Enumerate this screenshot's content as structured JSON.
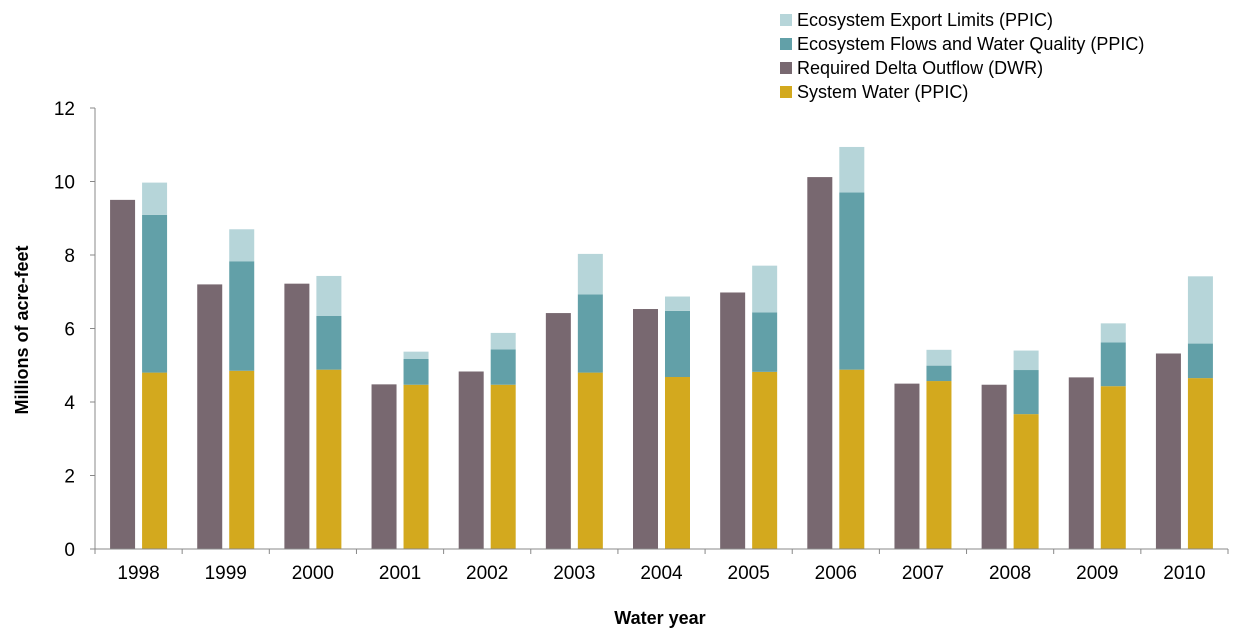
{
  "chart_data": {
    "type": "bar",
    "stacked_group": true,
    "title": "",
    "xlabel": "Water year",
    "ylabel": "Millions of acre-feet",
    "ylim": [
      0,
      12
    ],
    "yticks": [
      "0",
      "2",
      "4",
      "6",
      "8",
      "10",
      "12"
    ],
    "grid": false,
    "legend_position": "top-right",
    "categories": [
      "1998",
      "1999",
      "2000",
      "2001",
      "2002",
      "2003",
      "2004",
      "2005",
      "2006",
      "2007",
      "2008",
      "2009",
      "2010"
    ],
    "legend": [
      {
        "name": "Ecosystem Export Limits (PPIC)",
        "color": "#b6d5d9"
      },
      {
        "name": "Ecosystem Flows and Water Quality (PPIC)",
        "color": "#62a0a8"
      },
      {
        "name": "Required Delta Outflow (DWR)",
        "color": "#786870"
      },
      {
        "name": "System Water (PPIC)",
        "color": "#d3a91e"
      }
    ],
    "required_delta_outflow": {
      "name": "Required Delta Outflow (DWR)",
      "color": "#786870",
      "values": [
        9.5,
        7.2,
        7.22,
        4.48,
        4.83,
        6.42,
        6.53,
        6.98,
        10.12,
        4.5,
        4.47,
        4.67,
        5.32
      ]
    },
    "stacked_series": [
      {
        "name": "System Water (PPIC)",
        "color": "#d3a91e",
        "values": [
          4.8,
          4.85,
          4.88,
          4.47,
          4.47,
          4.8,
          4.68,
          4.82,
          4.88,
          4.57,
          3.67,
          4.43,
          4.65
        ]
      },
      {
        "name": "Ecosystem Flows and Water Quality (PPIC)",
        "color": "#62a0a8",
        "values": [
          4.29,
          2.98,
          1.46,
          0.7,
          0.96,
          2.13,
          1.8,
          1.62,
          4.82,
          0.42,
          1.2,
          1.19,
          0.94
        ]
      },
      {
        "name": "Ecosystem Export Limits (PPIC)",
        "color": "#b6d5d9",
        "values": [
          0.88,
          0.87,
          1.09,
          0.2,
          0.45,
          1.1,
          0.39,
          1.27,
          1.24,
          0.43,
          0.53,
          0.52,
          1.83
        ]
      }
    ]
  }
}
